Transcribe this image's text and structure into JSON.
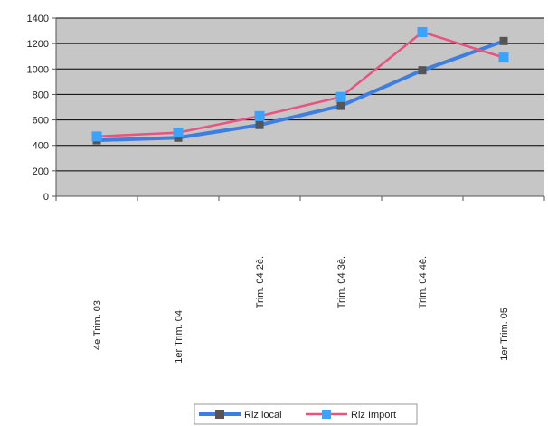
{
  "chart_data": {
    "type": "line",
    "title": "",
    "xlabel": "",
    "ylabel": "",
    "categories": [
      "4e Trim. 03",
      "1er Trim. 04",
      "Trim. 04 2è.",
      "Trim. 04 3è.",
      "Trim. 04 4è.",
      "1er Trim. 05"
    ],
    "ylim": [
      0,
      1400
    ],
    "yticks": [
      0,
      200,
      400,
      600,
      800,
      1000,
      1200,
      1400
    ],
    "grid": true,
    "legend_position": "bottom",
    "series": [
      {
        "name": "Riz local",
        "values": [
          440,
          460,
          560,
          710,
          990,
          1220
        ],
        "line_color": "#3d7fe0",
        "marker_color": "#555555"
      },
      {
        "name": "Riz Import",
        "values": [
          470,
          500,
          630,
          780,
          1290,
          1090
        ],
        "line_color": "#e8537f",
        "marker_color": "#3aa2ff"
      }
    ],
    "colors": {
      "plot_background": "#c6c6c6",
      "gridline": "#000000"
    }
  }
}
